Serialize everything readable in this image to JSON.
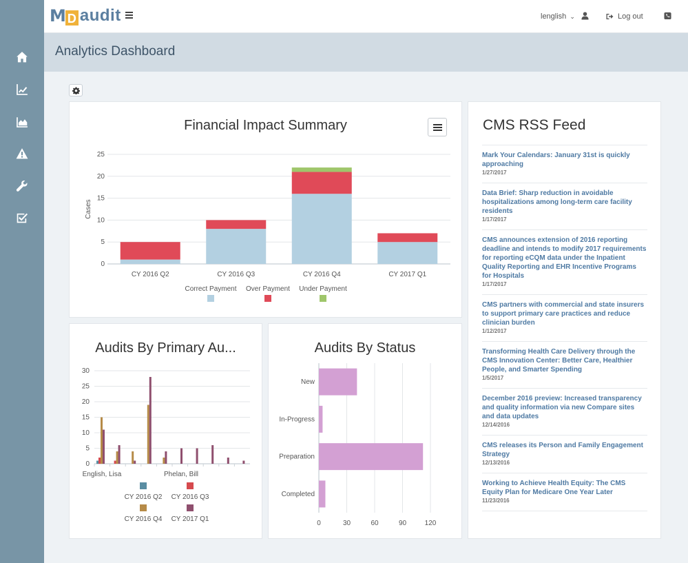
{
  "header": {
    "logo_m": "M",
    "logo_d": "D",
    "logo_audit": "audit",
    "language": "lenglish",
    "language_caret": "⌄",
    "logout": "Log out"
  },
  "page": {
    "title": "Analytics Dashboard"
  },
  "sidebar": {
    "items": [
      {
        "icon": "home-icon"
      },
      {
        "icon": "line-chart-icon"
      },
      {
        "icon": "area-chart-icon"
      },
      {
        "icon": "warning-icon"
      },
      {
        "icon": "wrench-icon"
      },
      {
        "icon": "checklist-icon"
      }
    ]
  },
  "colors": {
    "correct": "#b3d0e1",
    "over": "#e04a58",
    "under": "#9fc66b",
    "q2": "#5a8da2",
    "q3": "#d64a4e",
    "q4": "#b68b48",
    "q1_2017": "#8f4f6e",
    "status": "#d3a0d3"
  },
  "panels": {
    "financial": {
      "title": "Financial Impact Summary"
    },
    "auditors": {
      "title": "Audits By Primary Au..."
    },
    "status": {
      "title": "Audits By Status"
    }
  },
  "chart_data": [
    {
      "id": "financial",
      "type": "bar",
      "stacked": true,
      "title": "Financial Impact Summary",
      "ylabel": "Cases",
      "ylim": [
        0,
        25
      ],
      "yticks": [
        0,
        5,
        10,
        15,
        20,
        25
      ],
      "categories": [
        "CY 2016 Q2",
        "CY 2016 Q3",
        "CY 2016 Q4",
        "CY 2017 Q1"
      ],
      "series": [
        {
          "name": "Correct Payment",
          "values": [
            1,
            8,
            16,
            5
          ]
        },
        {
          "name": "Over Payment",
          "values": [
            4,
            2,
            5,
            2
          ]
        },
        {
          "name": "Under Payment",
          "values": [
            0,
            0,
            1,
            0
          ]
        }
      ],
      "legend": "bottom"
    },
    {
      "id": "auditors",
      "type": "bar",
      "title": "Audits By Primary Au...",
      "ylim": [
        0,
        30
      ],
      "yticks": [
        0,
        5,
        10,
        15,
        20,
        25,
        30
      ],
      "x_tick_labels": [
        "English, Lisa",
        "Phelan, Bill"
      ],
      "series": [
        {
          "name": "CY 2016 Q2",
          "values": [
            1,
            0,
            0,
            0,
            0,
            0,
            0,
            0,
            0,
            0
          ]
        },
        {
          "name": "CY 2016 Q3",
          "values": [
            2,
            1,
            0,
            0,
            0,
            0,
            0,
            0,
            0,
            0
          ]
        },
        {
          "name": "CY 2016 Q4",
          "values": [
            15,
            4,
            4,
            19,
            2,
            0,
            0,
            0,
            0,
            0
          ]
        },
        {
          "name": "CY 2017 Q1",
          "values": [
            11,
            6,
            1,
            28,
            4,
            5,
            5,
            6,
            2,
            1
          ]
        }
      ],
      "legend": "bottom"
    },
    {
      "id": "status",
      "type": "bar",
      "orientation": "horizontal",
      "title": "Audits By Status",
      "categories": [
        "New",
        "In-Progress",
        "Preparation",
        "Completed"
      ],
      "values": [
        41,
        4,
        112,
        7
      ],
      "xlim": [
        0,
        140
      ],
      "xticks": [
        0,
        30,
        60,
        90,
        120
      ]
    }
  ],
  "rss": {
    "title": "CMS RSS Feed",
    "items": [
      {
        "title": "Mark Your Calendars: January 31st is quickly approaching",
        "date": "1/27/2017"
      },
      {
        "title": "Data Brief: Sharp reduction in avoidable hospitalizations among long-term care facility residents",
        "date": "1/17/2017"
      },
      {
        "title": "CMS announces extension of 2016 reporting deadline and intends to modify 2017 requirements for reporting eCQM data under the Inpatient Quality Reporting and EHR Incentive Programs for Hospitals",
        "date": "1/17/2017"
      },
      {
        "title": "CMS partners with commercial and state insurers to support primary care practices and reduce clinician burden",
        "date": "1/12/2017"
      },
      {
        "title": "Transforming Health Care Delivery through the CMS Innovation Center: Better Care, Healthier People, and Smarter Spending",
        "date": "1/5/2017"
      },
      {
        "title": "December 2016 preview: Increased transparency and quality information via new Compare sites and data updates",
        "date": "12/14/2016"
      },
      {
        "title": "CMS releases its Person and Family Engagement Strategy",
        "date": "12/13/2016"
      },
      {
        "title": "Working to Achieve Health Equity: The CMS Equity Plan for Medicare One Year Later",
        "date": "11/23/2016"
      }
    ]
  }
}
